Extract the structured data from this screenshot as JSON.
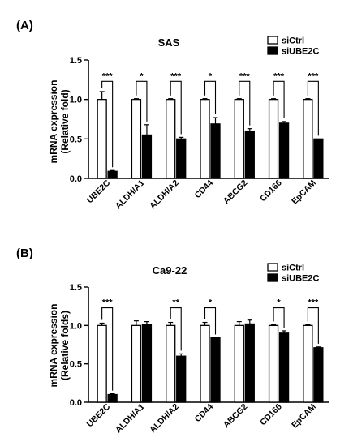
{
  "chart_data": [
    {
      "panel": "(A)",
      "type": "bar",
      "title": "SAS",
      "ylabel": "mRNA expression\n(Relative fold)",
      "ylim": [
        0,
        1.5
      ],
      "yticks": [
        "0.0",
        "0.5",
        "1.0",
        "1.5"
      ],
      "categories": [
        "UBE2C",
        "ALDH/A1",
        "ALDH/A2",
        "CD44",
        "ABCG2",
        "CD166",
        "EpCAM"
      ],
      "series": [
        {
          "name": "siCtrl",
          "color": "#ffffff",
          "values": [
            1.0,
            1.0,
            1.0,
            1.0,
            1.0,
            1.0,
            1.0
          ],
          "errors": [
            0.1,
            0.01,
            0.01,
            0.01,
            0.01,
            0.01,
            0.01
          ]
        },
        {
          "name": "siUBE2C",
          "color": "#000000",
          "values": [
            0.09,
            0.55,
            0.5,
            0.69,
            0.6,
            0.7,
            0.5
          ],
          "errors": [
            0.01,
            0.13,
            0.02,
            0.08,
            0.03,
            0.02,
            0.0
          ]
        }
      ],
      "significance": [
        "***",
        "*",
        "***",
        "*",
        "***",
        "***",
        "***"
      ],
      "legend_position": "top-right"
    },
    {
      "panel": "(B)",
      "type": "bar",
      "title": "Ca9-22",
      "ylabel": "mRNA expression\n(Relative folds)",
      "ylim": [
        0,
        1.5
      ],
      "yticks": [
        "0.0",
        "0.5",
        "1.0",
        "1.5"
      ],
      "categories": [
        "UBE2C",
        "ALDH/A1",
        "ALDH/A2",
        "CD44",
        "ABCG2",
        "CD166",
        "EpCAM"
      ],
      "series": [
        {
          "name": "siCtrl",
          "color": "#ffffff",
          "values": [
            1.0,
            1.0,
            1.0,
            1.0,
            1.0,
            1.0,
            1.0
          ],
          "errors": [
            0.03,
            0.06,
            0.04,
            0.04,
            0.05,
            0.01,
            0.01
          ]
        },
        {
          "name": "siUBE2C",
          "color": "#000000",
          "values": [
            0.1,
            1.01,
            0.6,
            0.84,
            1.02,
            0.9,
            0.71
          ],
          "errors": [
            0.01,
            0.04,
            0.03,
            0.0,
            0.05,
            0.03,
            0.01
          ]
        }
      ],
      "significance": [
        "***",
        "",
        "**",
        "*",
        "",
        "*",
        "***"
      ],
      "legend_position": "top-right"
    }
  ]
}
